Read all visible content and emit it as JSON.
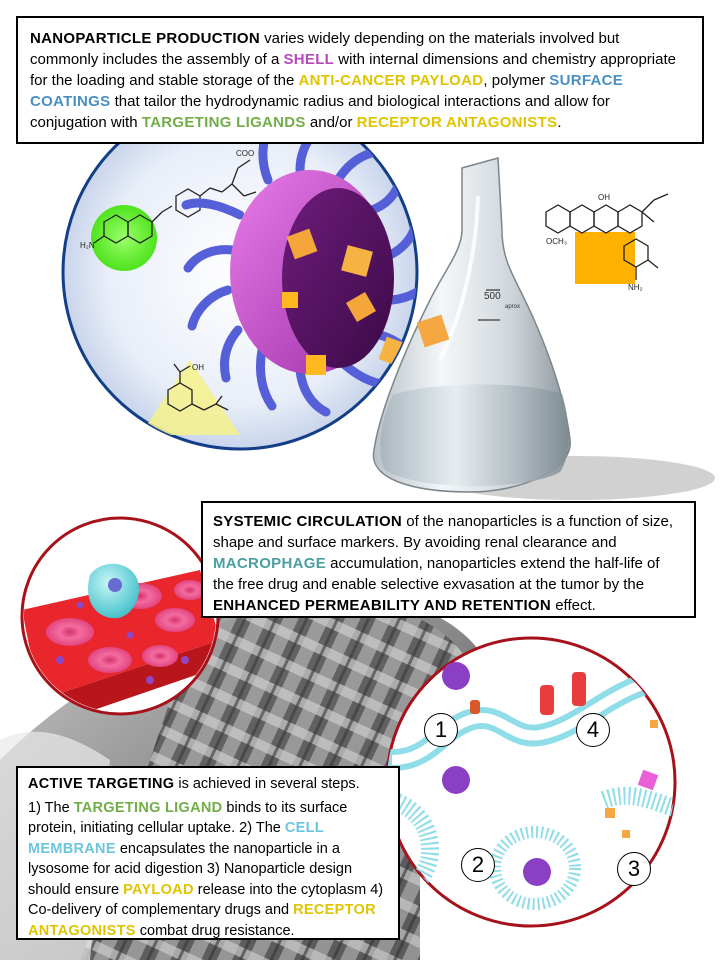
{
  "colors": {
    "shell": "#b54ab8",
    "payload": "#e0c400",
    "surface_coatings": "#4a8fc2",
    "targeting_ligands": "#72ae48",
    "macrophage": "#4aa0a0",
    "cell_membrane": "#6cc5df"
  },
  "production": {
    "kw_production": "NANOPARTICLE PRODUCTION",
    "t1": " varies widely depending on the materials involved but commonly includes the assembly of a ",
    "kw_shell": "SHELL",
    "t2": " with internal dimensions and chemistry appropriate for the loading and stable storage of the ",
    "kw_payload": "ANTI-CANCER PAYLOAD",
    "t3": ", polymer ",
    "kw_coatings": "SURFACE COATINGS",
    "t4": " that tailor the hydrodynamic radius and biological interactions and allow for conjugation with ",
    "kw_ligands": "TARGETING LIGANDS",
    "t5": " and/or ",
    "kw_antagonists": "RECEPTOR ANTAGONISTS",
    "t6": "."
  },
  "circulation": {
    "kw_systemic": "SYSTEMIC CIRCULATION",
    "t1": " of the nanoparticles is a function of size, shape and surface markers. By avoiding renal clearance and ",
    "kw_macrophage": "MACROPHAGE",
    "t2": " accumulation, nanoparticles extend the half-life of the free drug and enable selective exvasation at the tumor by the ",
    "kw_epr": "ENHANCED PERMEABILITY AND RETENTION",
    "t3": " effect."
  },
  "targeting": {
    "kw_active": "ACTIVE TARGETING",
    "t1": " is achieved in several steps.",
    "t2": "1) The ",
    "kw_ligand": "TARGETING LIGAND",
    "t3": " binds to its surface protein, initiating cellular uptake. 2) The ",
    "kw_membrane": "CELL MEMBRANE",
    "t4": " encapsulates the nanoparticle in a lysosome for acid digestion 3) Nanoparticle design should ensure ",
    "kw_payload": "PAYLOAD",
    "t5": " release into the cytoplasm 4) Co-delivery of complementary drugs and ",
    "kw_antagonists": "RECEPTOR ANTAGONISTS",
    "t6": " combat drug resistance."
  },
  "flask": {
    "volume_label": "500",
    "unit_label": "aprox"
  },
  "steps": [
    "1",
    "2",
    "3",
    "4"
  ],
  "chem": {
    "folate_coo": "COO",
    "folate_nh2": "H₂N",
    "aspirin_oh": "OH",
    "dox_och3": "OCH₃",
    "dox_oh": "OH",
    "dox_nh2": "NH₂"
  }
}
